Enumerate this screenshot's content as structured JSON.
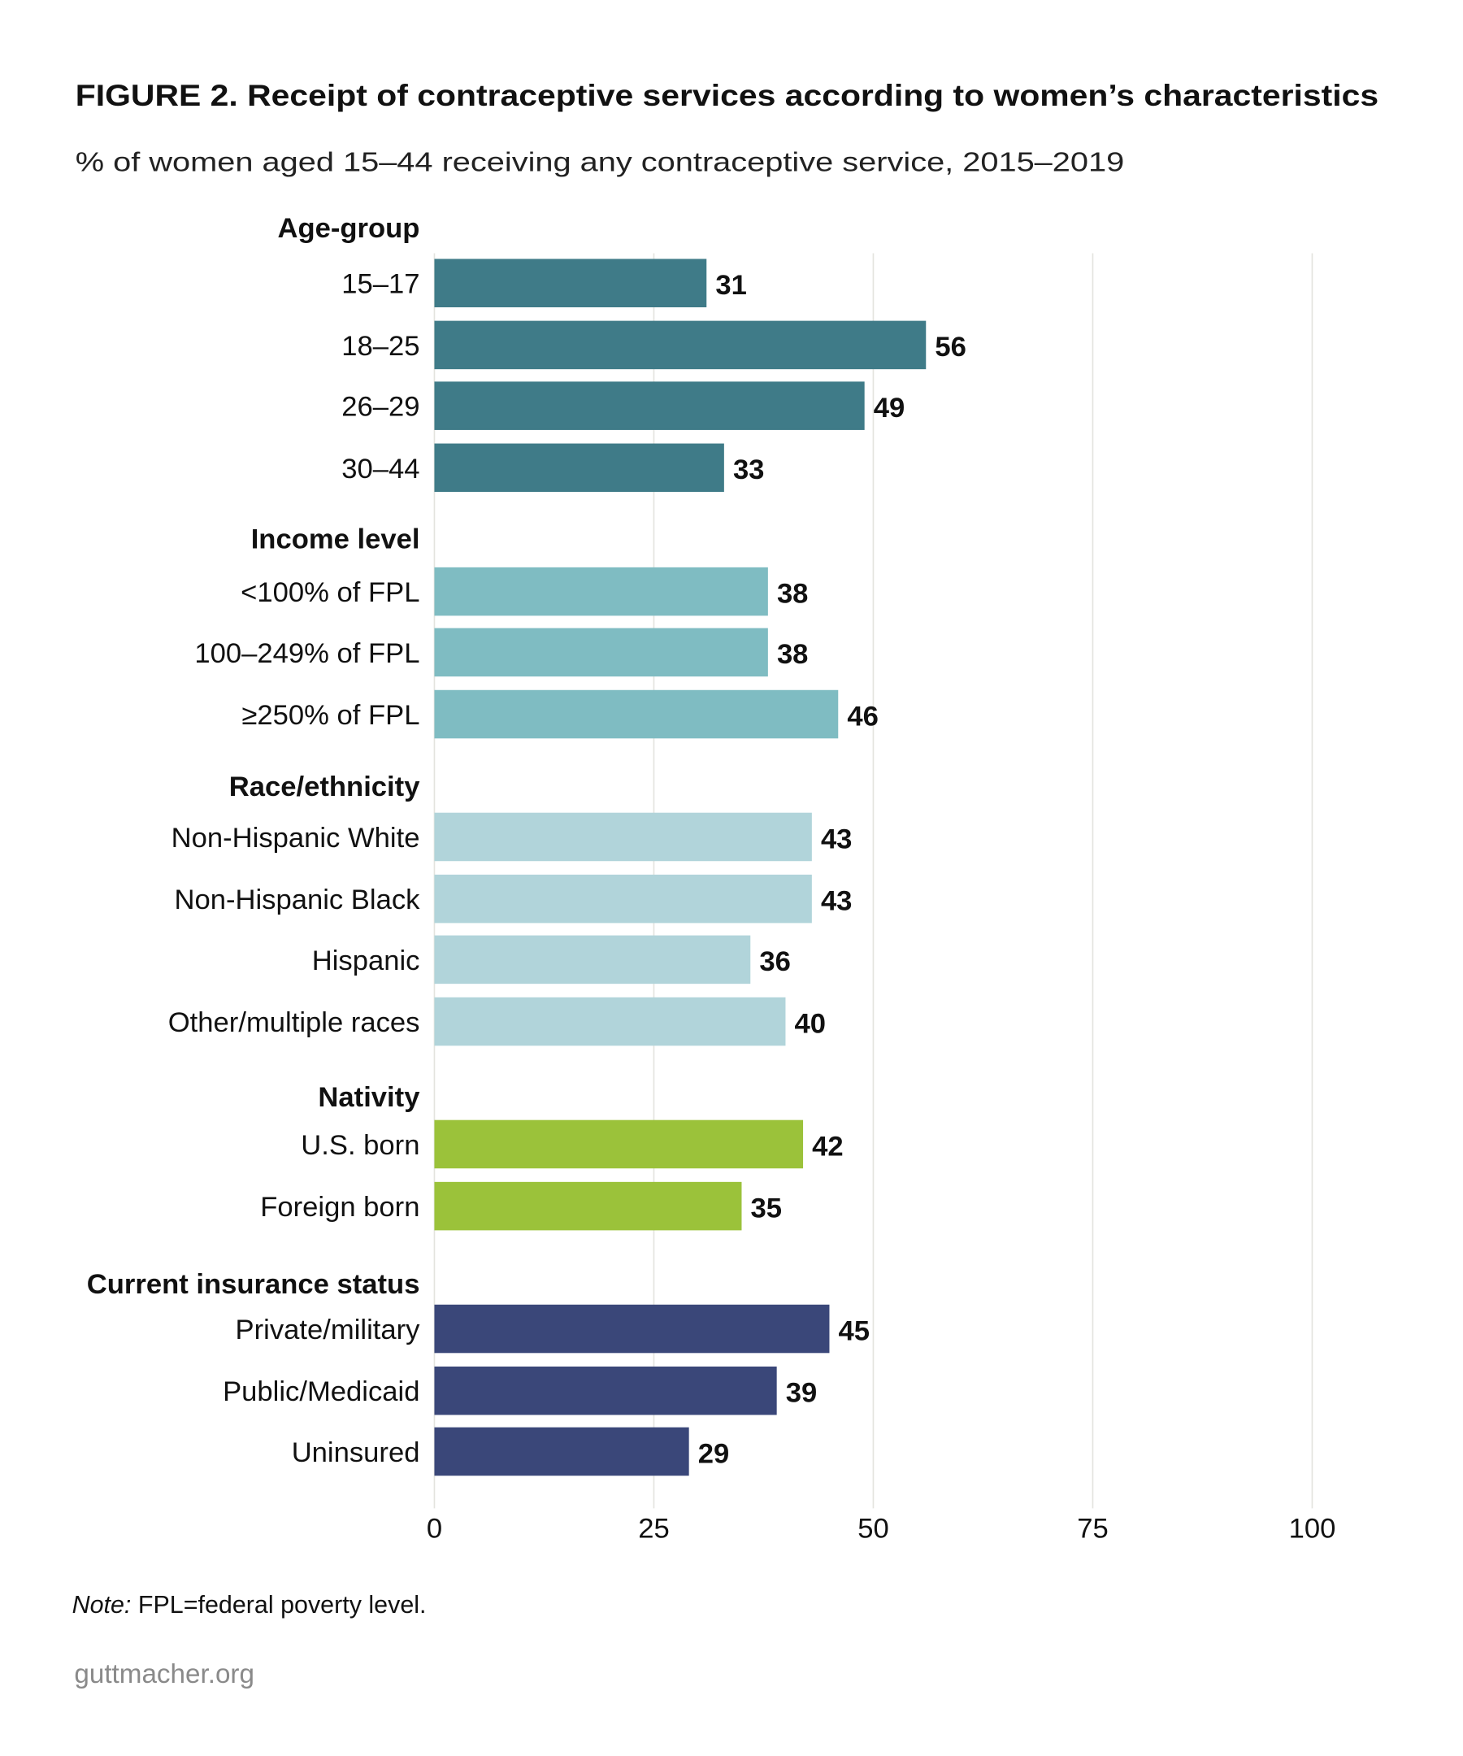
{
  "chart_data": {
    "type": "bar",
    "orientation": "horizontal",
    "title": "FIGURE 2. Receipt of contraceptive services according to women’s characteristics",
    "subtitle": "% of women aged 15–44 receiving any contraceptive service, 2015–2019",
    "xlim": [
      0,
      100
    ],
    "xticks": [
      "0",
      "25",
      "50",
      "75",
      "100"
    ],
    "grid": "vertical",
    "groups": [
      {
        "name": "Age-group",
        "color": "#3f7b88",
        "categories": [
          "15–17",
          "18–25",
          "26–29",
          "30–44"
        ],
        "values": [
          31,
          56,
          49,
          33
        ]
      },
      {
        "name": "Income level",
        "color": "#7fbcc2",
        "categories": [
          "<100% of FPL",
          "100–249% of FPL",
          "≥250% of FPL"
        ],
        "values": [
          38,
          38,
          46
        ]
      },
      {
        "name": "Race/ethnicity",
        "color": "#b1d4da",
        "categories": [
          "Non-Hispanic White",
          "Non-Hispanic Black",
          "Hispanic",
          "Other/multiple races"
        ],
        "values": [
          43,
          43,
          36,
          40
        ]
      },
      {
        "name": "Nativity",
        "color": "#9bc23a",
        "categories": [
          "U.S. born",
          "Foreign born"
        ],
        "values": [
          42,
          35
        ]
      },
      {
        "name": "Current insurance status",
        "color": "#3a4779",
        "categories": [
          "Private/military",
          "Public/Medicaid",
          "Uninsured"
        ],
        "values": [
          45,
          39,
          29
        ]
      }
    ]
  },
  "note_label": "Note:",
  "note_text": " FPL=federal poverty level.",
  "source": "guttmacher.org"
}
